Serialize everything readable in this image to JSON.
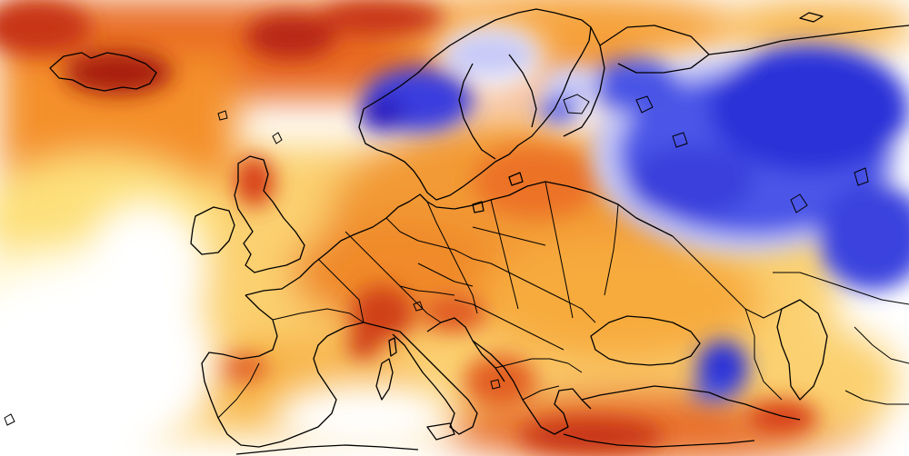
{
  "map": {
    "colors": {
      "background": "#ffffff",
      "warm_light": "#fff3a8",
      "warm_mid": "#fcc24a",
      "warm_orange": "#f28a2c",
      "warm_red": "#d84018",
      "warm_dark": "#a81e10",
      "cold_light": "#c8caf8",
      "cold_mid": "#4652e6",
      "cold_dark": "#1e1ec8",
      "coastline": "#000000"
    },
    "regions": [
      "iceland",
      "scandinavia",
      "british-isles",
      "iberia",
      "france",
      "central-europe",
      "italy",
      "balkans",
      "eastern-europe",
      "russia",
      "turkey",
      "caucasus",
      "north-africa"
    ]
  }
}
